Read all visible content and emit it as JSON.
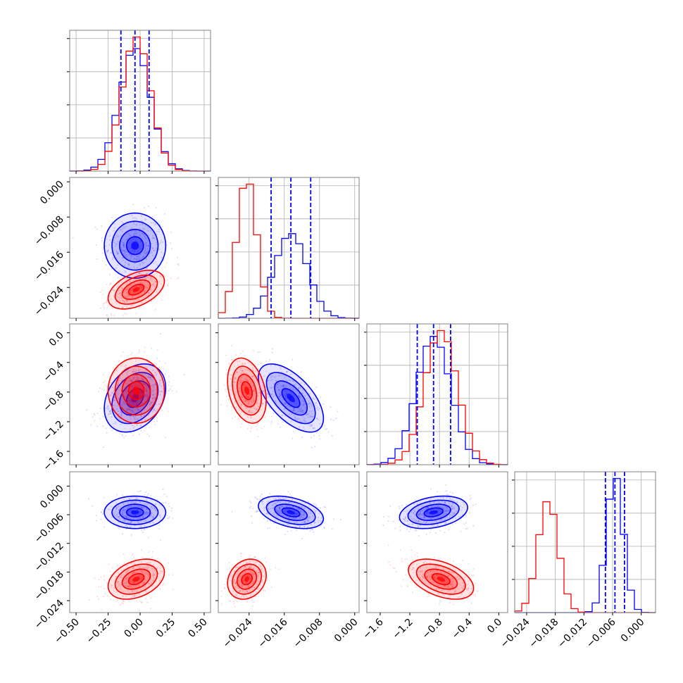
{
  "chart_data": {
    "type": "corner",
    "colors": {
      "blue": "#0000ff",
      "red": "#ff0000",
      "grid": "#b0b0b0",
      "frame": "#808080"
    },
    "params": [
      {
        "range": [
          -0.55,
          0.55
        ],
        "ticks": [
          -0.5,
          -0.25,
          0.0,
          0.25,
          0.5
        ],
        "tick_labels": [
          "−0.50",
          "−0.25",
          "0.00",
          "0.25",
          "0.50"
        ]
      },
      {
        "range": [
          -0.031,
          0.001
        ],
        "ticks": [
          -0.024,
          -0.016,
          -0.008,
          0.0
        ],
        "tick_labels": [
          "−0.024",
          "−0.016",
          "−0.008",
          "0.000"
        ]
      },
      {
        "range": [
          -1.78,
          0.12
        ],
        "ticks": [
          -1.6,
          -1.2,
          -0.8,
          -0.4,
          0.0
        ],
        "tick_labels": [
          "−1.6",
          "−1.2",
          "−0.8",
          "−0.4",
          "0.0"
        ]
      },
      {
        "range": [
          -0.0265,
          0.003
        ],
        "ticks": [
          -0.024,
          -0.018,
          -0.012,
          -0.006,
          0.0
        ],
        "tick_labels": [
          "−0.024",
          "−0.018",
          "−0.012",
          "−0.006",
          "0.000"
        ]
      }
    ],
    "series": [
      {
        "color": "blue",
        "mean": [
          -0.04,
          -0.0145,
          -0.88,
          -0.0055
        ],
        "std": [
          0.12,
          0.0037,
          0.23,
          0.0017
        ],
        "quantiles": [
          [
            -0.15,
            -0.04,
            0.07
          ],
          [
            -0.019,
            -0.0145,
            -0.01
          ],
          [
            -1.1,
            -0.88,
            -0.65
          ],
          [
            -0.0075,
            -0.0055,
            -0.0035
          ]
        ]
      },
      {
        "color": "red",
        "mean": [
          -0.03,
          -0.0245,
          -0.78,
          -0.0195
        ],
        "std": [
          0.11,
          0.0022,
          0.22,
          0.0021
        ],
        "quantiles": null
      }
    ],
    "correlations": {
      "blue": {
        "0-1": 0.0,
        "0-2": 0.3,
        "0-3": 0.0,
        "1-2": -0.6,
        "1-3": -0.4,
        "2-3": 0.3
      },
      "red": {
        "0-1": 0.45,
        "0-2": 0.0,
        "0-3": 0.35,
        "1-2": -0.3,
        "1-3": 0.2,
        "2-3": -0.45
      }
    }
  }
}
